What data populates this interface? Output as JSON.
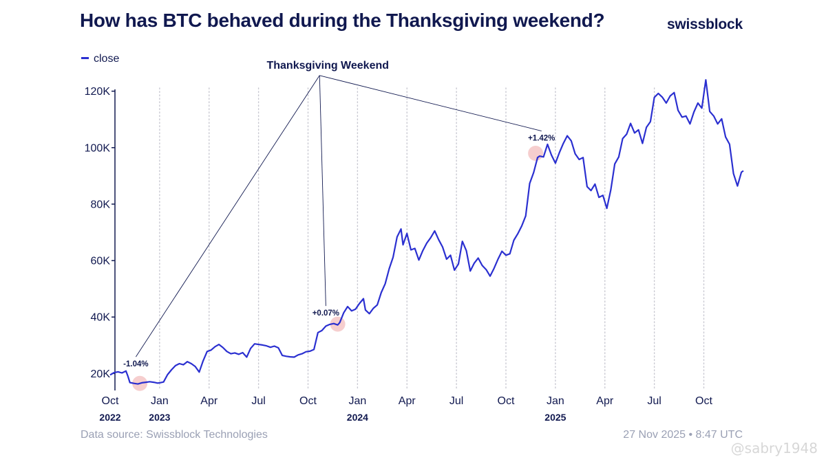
{
  "header": {
    "title": "How has BTC behaved during the Thanksgiving weekend?",
    "brand": "swissblock"
  },
  "legend": {
    "label": "close"
  },
  "footer": {
    "source": "Data source: Swissblock Technologies",
    "timestamp": "27 Nov 2025 • 8:47 UTC",
    "watermark": "@sabry1948"
  },
  "colors": {
    "line": "#2a2fd0",
    "text": "#10184f",
    "muted": "#9aa0b4",
    "marker": "#f4c6c6"
  },
  "chart_data": {
    "type": "line",
    "title": "How has BTC behaved during the Thanksgiving weekend?",
    "series_name": "close",
    "xlim": [
      2022.75,
      2025.95
    ],
    "ylim": [
      14000,
      126000
    ],
    "yticks": [
      {
        "value": 20000,
        "label": "20K"
      },
      {
        "value": 40000,
        "label": "40K"
      },
      {
        "value": 60000,
        "label": "60K"
      },
      {
        "value": 80000,
        "label": "80K"
      },
      {
        "value": 100000,
        "label": "100K"
      },
      {
        "value": 120000,
        "label": "120K"
      }
    ],
    "xticks": [
      {
        "value": 2022.75,
        "label": "Oct",
        "year": "2022"
      },
      {
        "value": 2023.0,
        "label": "Jan",
        "year": "2023"
      },
      {
        "value": 2023.25,
        "label": "Apr",
        "year": ""
      },
      {
        "value": 2023.5,
        "label": "Jul",
        "year": ""
      },
      {
        "value": 2023.75,
        "label": "Oct",
        "year": ""
      },
      {
        "value": 2024.0,
        "label": "Jan",
        "year": "2024"
      },
      {
        "value": 2024.25,
        "label": "Apr",
        "year": ""
      },
      {
        "value": 2024.5,
        "label": "Jul",
        "year": ""
      },
      {
        "value": 2024.75,
        "label": "Oct",
        "year": ""
      },
      {
        "value": 2025.0,
        "label": "Jan",
        "year": "2025"
      },
      {
        "value": 2025.25,
        "label": "Apr",
        "year": ""
      },
      {
        "value": 2025.5,
        "label": "Jul",
        "year": ""
      },
      {
        "value": 2025.75,
        "label": "Oct",
        "year": ""
      }
    ],
    "points": [
      [
        2022.75,
        19500
      ],
      [
        2022.77,
        20300
      ],
      [
        2022.79,
        20600
      ],
      [
        2022.81,
        20200
      ],
      [
        2022.83,
        20900
      ],
      [
        2022.84,
        19000
      ],
      [
        2022.85,
        16800
      ],
      [
        2022.87,
        16500
      ],
      [
        2022.89,
        16300
      ],
      [
        2022.91,
        16700
      ],
      [
        2022.93,
        16900
      ],
      [
        2022.95,
        17100
      ],
      [
        2022.97,
        16900
      ],
      [
        2022.99,
        16600
      ],
      [
        2023.0,
        16700
      ],
      [
        2023.02,
        17000
      ],
      [
        2023.04,
        19600
      ],
      [
        2023.06,
        21300
      ],
      [
        2023.08,
        22800
      ],
      [
        2023.1,
        23500
      ],
      [
        2023.12,
        23100
      ],
      [
        2023.14,
        24200
      ],
      [
        2023.16,
        23500
      ],
      [
        2023.18,
        22500
      ],
      [
        2023.2,
        20500
      ],
      [
        2023.22,
        24500
      ],
      [
        2023.24,
        27800
      ],
      [
        2023.26,
        28300
      ],
      [
        2023.28,
        29500
      ],
      [
        2023.3,
        30300
      ],
      [
        2023.32,
        29200
      ],
      [
        2023.34,
        27800
      ],
      [
        2023.36,
        27000
      ],
      [
        2023.38,
        27300
      ],
      [
        2023.4,
        26800
      ],
      [
        2023.42,
        27400
      ],
      [
        2023.44,
        25800
      ],
      [
        2023.46,
        28900
      ],
      [
        2023.48,
        30500
      ],
      [
        2023.5,
        30300
      ],
      [
        2023.52,
        30100
      ],
      [
        2023.54,
        29800
      ],
      [
        2023.56,
        29300
      ],
      [
        2023.58,
        29700
      ],
      [
        2023.6,
        29100
      ],
      [
        2023.62,
        26400
      ],
      [
        2023.64,
        26100
      ],
      [
        2023.66,
        25900
      ],
      [
        2023.68,
        25800
      ],
      [
        2023.7,
        26600
      ],
      [
        2023.72,
        27000
      ],
      [
        2023.74,
        27700
      ],
      [
        2023.76,
        27900
      ],
      [
        2023.78,
        28500
      ],
      [
        2023.8,
        34500
      ],
      [
        2023.82,
        35200
      ],
      [
        2023.84,
        36800
      ],
      [
        2023.86,
        37400
      ],
      [
        2023.88,
        37700
      ],
      [
        2023.9,
        37200
      ],
      [
        2023.91,
        38000
      ],
      [
        2023.93,
        41500
      ],
      [
        2023.95,
        43700
      ],
      [
        2023.97,
        42200
      ],
      [
        2023.99,
        42800
      ],
      [
        2024.01,
        44800
      ],
      [
        2024.03,
        46500
      ],
      [
        2024.04,
        42500
      ],
      [
        2024.06,
        41200
      ],
      [
        2024.08,
        43100
      ],
      [
        2024.1,
        44300
      ],
      [
        2024.12,
        48700
      ],
      [
        2024.14,
        51800
      ],
      [
        2024.16,
        57100
      ],
      [
        2024.18,
        61200
      ],
      [
        2024.2,
        68400
      ],
      [
        2024.22,
        71200
      ],
      [
        2024.23,
        65600
      ],
      [
        2024.25,
        69600
      ],
      [
        2024.27,
        63800
      ],
      [
        2024.29,
        64300
      ],
      [
        2024.31,
        60200
      ],
      [
        2024.33,
        63500
      ],
      [
        2024.35,
        66200
      ],
      [
        2024.37,
        68100
      ],
      [
        2024.39,
        70500
      ],
      [
        2024.41,
        67400
      ],
      [
        2024.43,
        64800
      ],
      [
        2024.45,
        60500
      ],
      [
        2024.47,
        61900
      ],
      [
        2024.49,
        56600
      ],
      [
        2024.51,
        58800
      ],
      [
        2024.53,
        66800
      ],
      [
        2024.55,
        63500
      ],
      [
        2024.57,
        56300
      ],
      [
        2024.59,
        59100
      ],
      [
        2024.61,
        60900
      ],
      [
        2024.63,
        58300
      ],
      [
        2024.65,
        56800
      ],
      [
        2024.67,
        54500
      ],
      [
        2024.69,
        57300
      ],
      [
        2024.71,
        60500
      ],
      [
        2024.73,
        63300
      ],
      [
        2024.75,
        61900
      ],
      [
        2024.77,
        62400
      ],
      [
        2024.79,
        67200
      ],
      [
        2024.81,
        69500
      ],
      [
        2024.83,
        72300
      ],
      [
        2024.85,
        75800
      ],
      [
        2024.87,
        87300
      ],
      [
        2024.89,
        91200
      ],
      [
        2024.91,
        96500
      ],
      [
        2024.92,
        97000
      ],
      [
        2024.94,
        96700
      ],
      [
        2024.96,
        101200
      ],
      [
        2024.98,
        97400
      ],
      [
        2025.0,
        94500
      ],
      [
        2025.02,
        98200
      ],
      [
        2025.04,
        101500
      ],
      [
        2025.06,
        104200
      ],
      [
        2025.08,
        102400
      ],
      [
        2025.1,
        97800
      ],
      [
        2025.12,
        95800
      ],
      [
        2025.14,
        96500
      ],
      [
        2025.16,
        86200
      ],
      [
        2025.18,
        84800
      ],
      [
        2025.2,
        87100
      ],
      [
        2025.22,
        82400
      ],
      [
        2025.24,
        83100
      ],
      [
        2025.26,
        78500
      ],
      [
        2025.28,
        85100
      ],
      [
        2025.3,
        94200
      ],
      [
        2025.32,
        96700
      ],
      [
        2025.34,
        103200
      ],
      [
        2025.36,
        104800
      ],
      [
        2025.38,
        108600
      ],
      [
        2025.4,
        105200
      ],
      [
        2025.42,
        106300
      ],
      [
        2025.44,
        101500
      ],
      [
        2025.46,
        107200
      ],
      [
        2025.48,
        109200
      ],
      [
        2025.5,
        117800
      ],
      [
        2025.52,
        119200
      ],
      [
        2025.54,
        117900
      ],
      [
        2025.56,
        115800
      ],
      [
        2025.58,
        118300
      ],
      [
        2025.6,
        119500
      ],
      [
        2025.62,
        113200
      ],
      [
        2025.64,
        110800
      ],
      [
        2025.66,
        111200
      ],
      [
        2025.68,
        108400
      ],
      [
        2025.7,
        112600
      ],
      [
        2025.72,
        115800
      ],
      [
        2025.74,
        114000
      ],
      [
        2025.76,
        124000
      ],
      [
        2025.78,
        112800
      ],
      [
        2025.8,
        111200
      ],
      [
        2025.82,
        108400
      ],
      [
        2025.84,
        110200
      ],
      [
        2025.86,
        103800
      ],
      [
        2025.88,
        101200
      ],
      [
        2025.9,
        90800
      ],
      [
        2025.92,
        86400
      ],
      [
        2025.94,
        91300
      ],
      [
        2025.95,
        91800
      ]
    ],
    "markers": [
      {
        "x": 2022.9,
        "y": 16500
      },
      {
        "x": 2023.9,
        "y": 37500
      },
      {
        "x": 2024.9,
        "y": 98000
      }
    ],
    "annotations": [
      {
        "label": "-1.04%",
        "x": 2022.88,
        "y": 22500,
        "to_x": 2022.9,
        "to_y": 16500
      },
      {
        "label": "+0.07%",
        "x": 2023.84,
        "y": 40500,
        "to_x": 2023.9,
        "to_y": 37500
      },
      {
        "label": "+1.42%",
        "x": 2024.93,
        "y": 102500,
        "to_x": 2024.9,
        "to_y": 98000
      }
    ],
    "callout": {
      "label": "Thanksgiving Weekend",
      "x": 2023.85,
      "y": 128000
    },
    "grid": "vertical-dotted"
  }
}
